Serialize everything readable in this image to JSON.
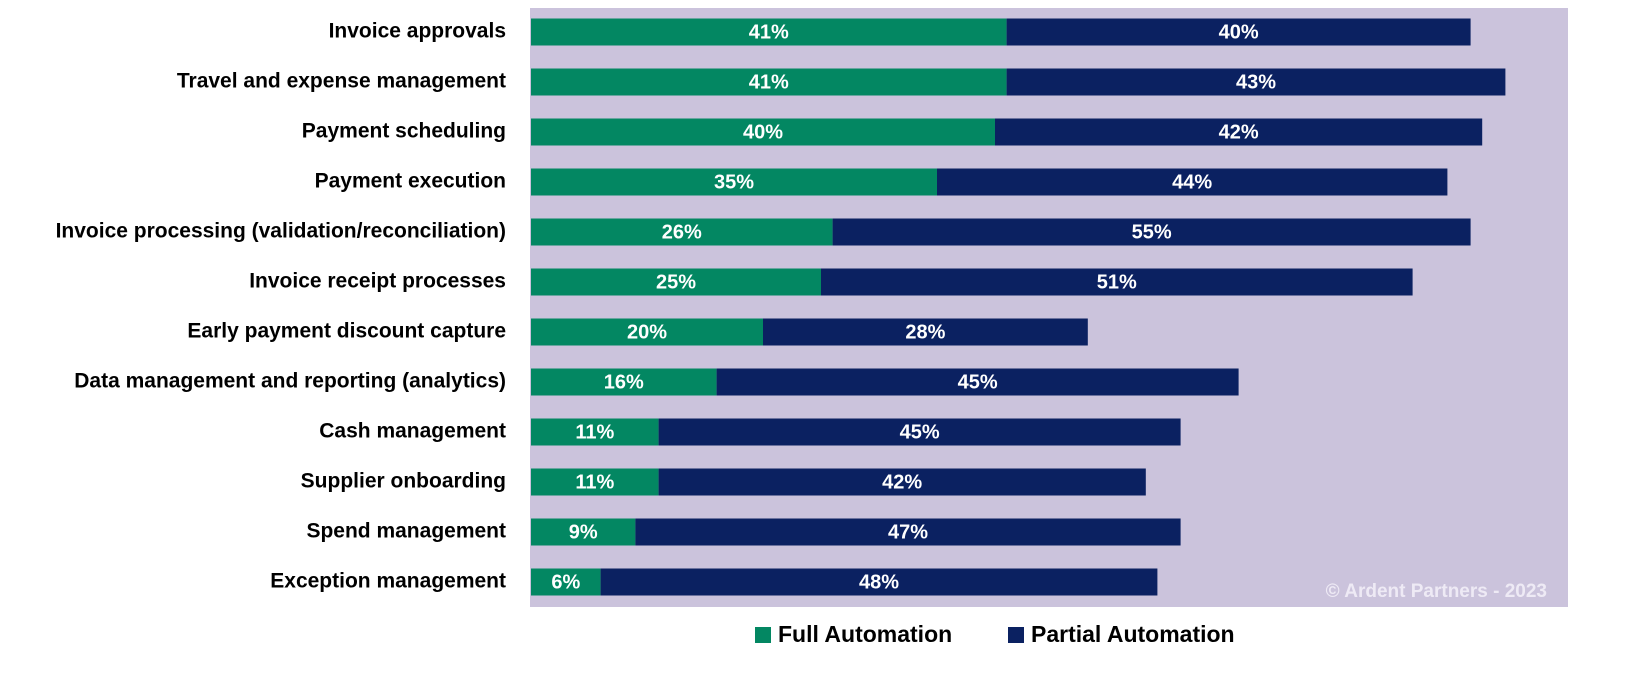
{
  "chart_data": {
    "type": "stacked_bar_horizontal",
    "categories": [
      "Invoice approvals",
      "Travel and expense management",
      "Payment scheduling",
      "Payment execution",
      "Invoice processing (validation/reconciliation)",
      "Invoice receipt processes",
      "Early payment discount capture",
      "Data management and reporting (analytics)",
      "Cash management",
      "Supplier onboarding",
      "Spend management",
      "Exception management"
    ],
    "series": [
      {
        "name": "Full Automation",
        "color": "#038762",
        "values": [
          41,
          41,
          40,
          35,
          26,
          25,
          20,
          16,
          11,
          11,
          9,
          6
        ],
        "value_labels": [
          "41%",
          "41%",
          "40%",
          "35%",
          "26%",
          "25%",
          "20%",
          "16%",
          "11%",
          "11%",
          "9%",
          "6%"
        ]
      },
      {
        "name": "Partial Automation",
        "color": "#0b2161",
        "values": [
          40,
          43,
          42,
          44,
          55,
          51,
          28,
          45,
          45,
          42,
          47,
          48
        ],
        "value_labels": [
          "40%",
          "43%",
          "42%",
          "44%",
          "55%",
          "51%",
          "28%",
          "45%",
          "45%",
          "42%",
          "47%",
          "48%"
        ]
      }
    ],
    "annotation": "© Ardent Partners - 2023",
    "plot_background": "#cbc3dc",
    "legend": "bottom"
  }
}
